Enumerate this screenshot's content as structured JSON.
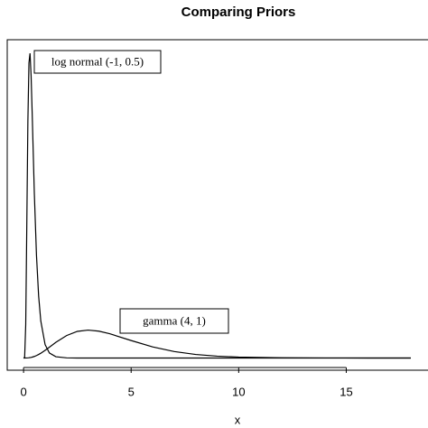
{
  "chart_data": {
    "type": "line",
    "title": "Comparing Priors",
    "x_label": "x",
    "x": [
      0,
      0.05,
      0.1,
      0.15,
      0.2,
      0.25,
      0.3,
      0.35,
      0.4,
      0.5,
      0.6,
      0.7,
      0.8,
      1,
      1.2,
      1.5,
      2,
      2.5,
      3,
      3.5,
      4,
      5,
      6,
      7,
      8,
      9,
      10,
      12,
      14,
      16,
      18
    ],
    "series": [
      {
        "name": "log normal (-1, 0.5)",
        "color": "#000000",
        "values": [
          0,
          0.0055,
          0.267,
          1.064,
          1.9,
          2.369,
          2.447,
          2.268,
          1.967,
          1.322,
          0.825,
          0.499,
          0.298,
          0.108,
          0.0406,
          0.0103,
          0.0013,
          0,
          0,
          0,
          0,
          0,
          0,
          0,
          0,
          0,
          0,
          0,
          0,
          0,
          0
        ]
      },
      {
        "name": "gamma (4, 1)",
        "color": "#000000",
        "values": [
          0,
          0,
          0.00015,
          0.0005,
          0.0011,
          0.002,
          0.0033,
          0.005,
          0.0072,
          0.0126,
          0.0198,
          0.0284,
          0.0383,
          0.0613,
          0.0867,
          0.1255,
          0.1804,
          0.2138,
          0.224,
          0.2158,
          0.1954,
          0.1404,
          0.0892,
          0.0521,
          0.0286,
          0.015,
          0.0076,
          0.0018,
          0.0004,
          0.0001,
          0
        ]
      }
    ],
    "xlim": [
      -0.76,
      18.8
    ],
    "ylim": [
      -0.098,
      2.556
    ],
    "xticks": [
      0,
      5,
      10,
      15
    ]
  }
}
